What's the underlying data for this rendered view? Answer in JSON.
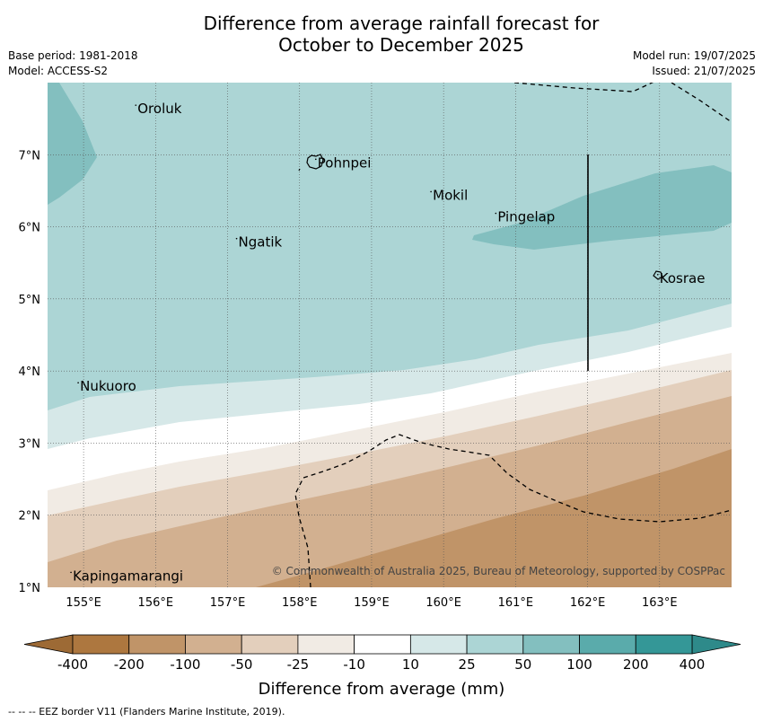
{
  "title": "Difference from average rainfall forecast for\nOctober to December 2025",
  "meta_left": {
    "base_period": "Base period: 1981-2018",
    "model": "Model: ACCESS-S2"
  },
  "meta_right": {
    "model_run": "Model run: 19/07/2025",
    "issued": "Issued: 21/07/2025"
  },
  "map": {
    "lon_range": [
      154.5,
      164.0
    ],
    "lat_range": [
      1.0,
      8.0
    ],
    "lon_ticks": [
      {
        "value": 155,
        "label": "155°E"
      },
      {
        "value": 156,
        "label": "156°E"
      },
      {
        "value": 157,
        "label": "157°E"
      },
      {
        "value": 158,
        "label": "158°E"
      },
      {
        "value": 159,
        "label": "159°E"
      },
      {
        "value": 160,
        "label": "160°E"
      },
      {
        "value": 161,
        "label": "161°E"
      },
      {
        "value": 162,
        "label": "162°E"
      },
      {
        "value": 163,
        "label": "163°E"
      }
    ],
    "lat_ticks": [
      {
        "value": 7,
        "label": "7°N"
      },
      {
        "value": 6,
        "label": "6°N"
      },
      {
        "value": 5,
        "label": "5°N"
      },
      {
        "value": 4,
        "label": "4°N"
      },
      {
        "value": 3,
        "label": "3°N"
      },
      {
        "value": 2,
        "label": "2°N"
      },
      {
        "value": 1,
        "label": "1°N"
      }
    ],
    "grid": true,
    "places": [
      {
        "name": "Oroluk",
        "lon": 155.75,
        "lat": 7.6
      },
      {
        "name": "Pohnpei",
        "lon": 158.25,
        "lat": 6.85
      },
      {
        "name": "Mokil",
        "lon": 159.85,
        "lat": 6.4
      },
      {
        "name": "Pingelap",
        "lon": 160.75,
        "lat": 6.1
      },
      {
        "name": "Ngatik",
        "lon": 157.15,
        "lat": 5.75
      },
      {
        "name": "Kosrae",
        "lon": 163.0,
        "lat": 5.25
      },
      {
        "name": "Nukuoro",
        "lon": 154.95,
        "lat": 3.75
      },
      {
        "name": "Kapingamarangi",
        "lon": 154.85,
        "lat": 1.12
      }
    ],
    "copyright": "© Commonwealth of Australia 2025, Bureau of Meteorology, supported by COSPPac"
  },
  "colorbar": {
    "ticks": [
      "-400",
      "-200",
      "-100",
      "-50",
      "-25",
      "-10",
      "10",
      "25",
      "50",
      "100",
      "200",
      "400"
    ],
    "colors": [
      "#ad773f",
      "#c09468",
      "#d2b090",
      "#e3cfbc",
      "#f1ebe4",
      "#ffffff",
      "#d6e8e8",
      "#acd5d5",
      "#83bfbf",
      "#5aabab",
      "#349797"
    ],
    "under_color": "#9d6a35",
    "over_color": "#2e8a8a",
    "label": "Difference from average (mm)"
  },
  "footer": "--  --  -- EEZ border V11 (Flanders Marine Institute, 2019)."
}
